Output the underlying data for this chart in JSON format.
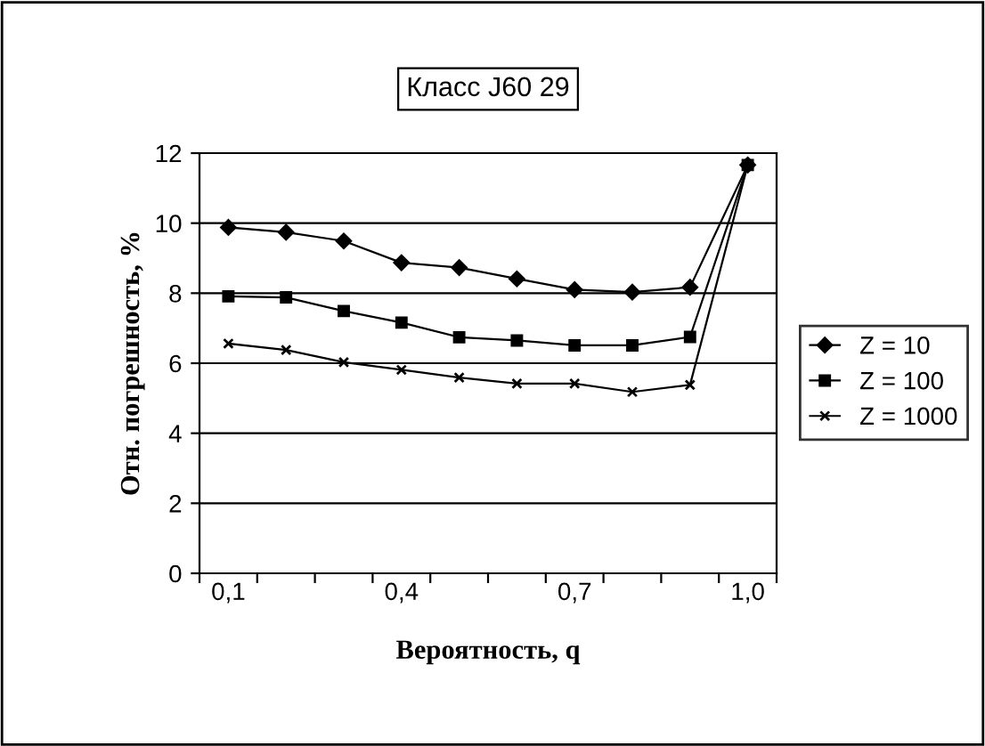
{
  "chart_data": {
    "type": "line",
    "title": "Класс J60 29",
    "xlabel": "Вероятность, q",
    "ylabel": "Отн. погрешность, %",
    "categories": [
      "0,1",
      null,
      null,
      "0,4",
      null,
      null,
      "0,7",
      null,
      null,
      "1,0"
    ],
    "series": [
      {
        "name": "Z = 10",
        "color": "#000000",
        "marker": "diamond",
        "values": [
          9.88,
          9.74,
          9.49,
          8.87,
          8.73,
          8.41,
          8.1,
          8.03,
          8.17,
          11.66
        ]
      },
      {
        "name": "Z = 100",
        "color": "#000000",
        "marker": "square",
        "values": [
          7.91,
          7.88,
          7.49,
          7.16,
          6.74,
          6.65,
          6.51,
          6.51,
          6.75,
          11.66
        ]
      },
      {
        "name": "Z = 1000",
        "color": "#000000",
        "marker": "cross",
        "values": [
          6.56,
          6.38,
          6.03,
          5.81,
          5.59,
          5.42,
          5.42,
          5.18,
          5.38,
          11.66
        ]
      }
    ],
    "ylim": [
      0,
      12
    ],
    "yticks": [
      0,
      2,
      4,
      6,
      8,
      10,
      12
    ],
    "grid": "y",
    "legend": "right",
    "line_style": "solid"
  }
}
